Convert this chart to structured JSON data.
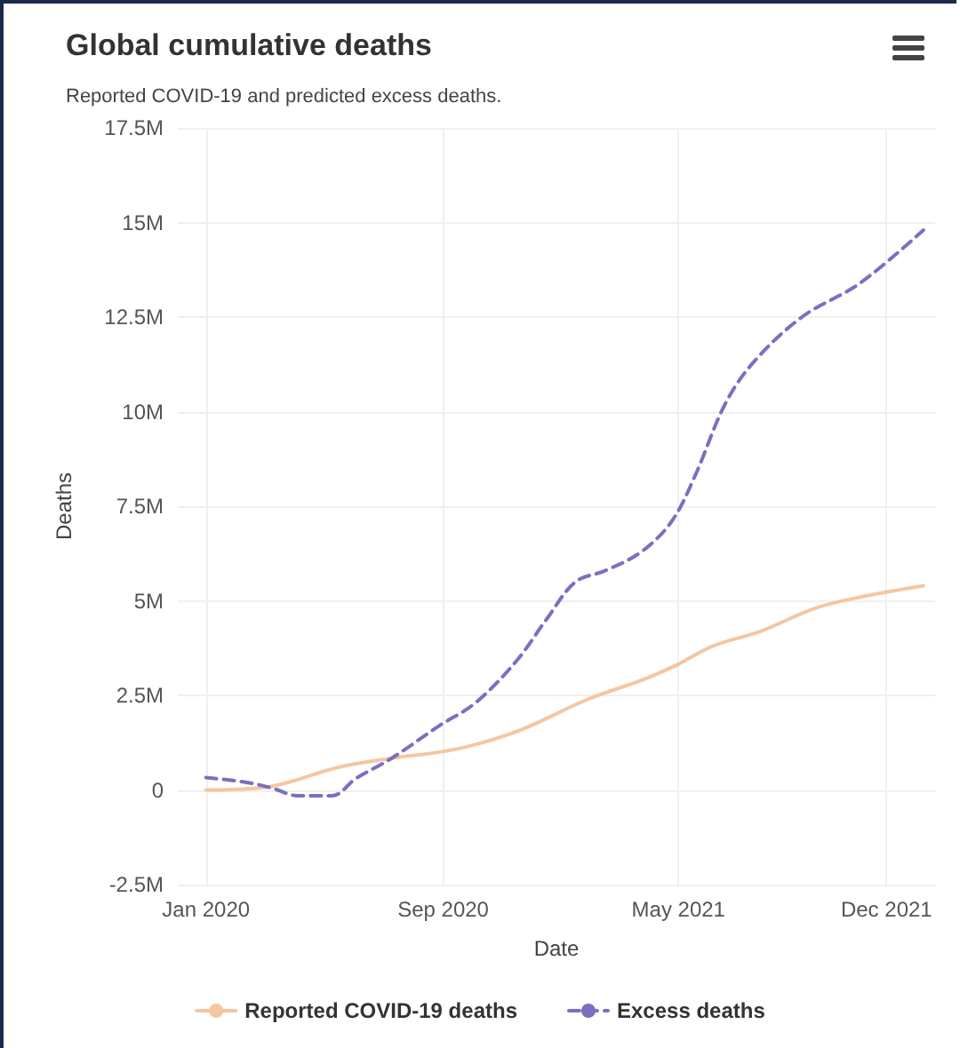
{
  "chart_data": {
    "type": "line",
    "title": "Global cumulative deaths",
    "subtitle": "Reported COVID-19 and predicted excess deaths.",
    "xlabel": "Date",
    "ylabel": "Deaths",
    "series": [
      {
        "name": "Reported COVID-19 deaths",
        "color": "#f5c6a0",
        "line_style": "solid",
        "x": [
          "2020-01-01",
          "2020-03-09",
          "2020-05-16",
          "2020-07-10",
          "2020-08-28",
          "2020-10-04",
          "2020-11-21",
          "2021-01-28",
          "2021-03-24",
          "2021-04-29",
          "2021-06-05",
          "2021-07-25",
          "2021-09-18",
          "2021-11-04",
          "2022-01-08"
        ],
        "values": [
          0,
          100000,
          600000,
          840000,
          1000000,
          1200000,
          1600000,
          2400000,
          2900000,
          3300000,
          3800000,
          4200000,
          4800000,
          5100000,
          5400000
        ]
      },
      {
        "name": "Excess deaths",
        "color": "#7b6fc0",
        "line_style": "dashed",
        "x": [
          "2020-01-01",
          "2020-02-12",
          "2020-03-09",
          "2020-04-04",
          "2020-05-10",
          "2020-06-03",
          "2020-07-10",
          "2020-08-28",
          "2020-10-04",
          "2020-11-15",
          "2020-12-16",
          "2021-01-15",
          "2021-02-15",
          "2021-03-24",
          "2021-04-24",
          "2021-05-18",
          "2021-06-18",
          "2021-07-17",
          "2021-09-05",
          "2021-11-04",
          "2022-01-08"
        ],
        "values": [
          330000,
          200000,
          50000,
          -150000,
          -150000,
          300000,
          840000,
          1700000,
          2300000,
          3400000,
          4500000,
          5500000,
          5800000,
          6300000,
          7100000,
          8300000,
          10200000,
          11300000,
          12500000,
          13400000,
          14800000
        ]
      }
    ],
    "xlim": [
      "2019-12-03",
      "2022-01-20"
    ],
    "xticks": [
      {
        "value": "2020-01-01",
        "label": "Jan 2020"
      },
      {
        "value": "2020-09-01",
        "label": "Sep 2020"
      },
      {
        "value": "2021-05-01",
        "label": "May 2021"
      },
      {
        "value": "2021-12-01",
        "label": "Dec 2021"
      }
    ],
    "ylim": [
      -2500000,
      17500000
    ],
    "yticks": [
      {
        "value": -2500000,
        "label": "-2.5M"
      },
      0,
      {
        "value": 2500000,
        "label": "2.5M"
      },
      {
        "value": 5000000,
        "label": "5M"
      },
      {
        "value": 7500000,
        "label": "7.5M"
      },
      {
        "value": 10000000,
        "label": "10M"
      },
      {
        "value": 12500000,
        "label": "12.5M"
      },
      {
        "value": 15000000,
        "label": "15M"
      },
      {
        "value": 17500000,
        "label": "17.5M"
      }
    ],
    "grid": true,
    "legend": "bottom",
    "marker": "none"
  }
}
